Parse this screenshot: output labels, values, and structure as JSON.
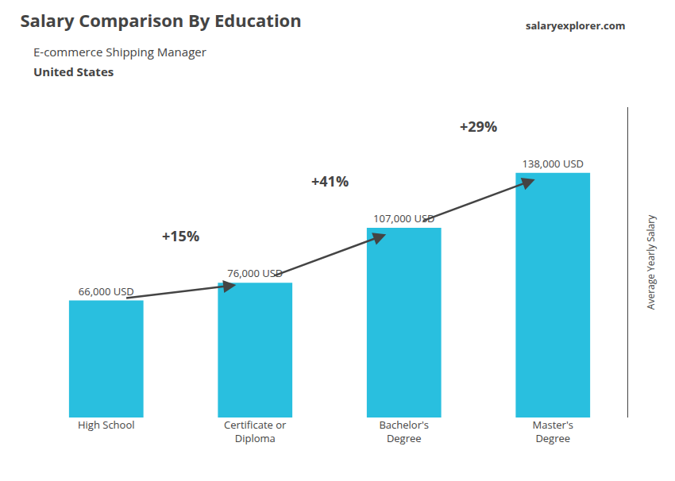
{
  "chart_data": {
    "type": "bar",
    "title": "Salary Comparison By Education",
    "subtitle": "E-commerce Shipping Manager",
    "ylabel": "Average Yearly Salary",
    "categories": [
      "High School",
      "Certificate or\nDiploma",
      "Bachelor's\nDegree",
      "Master's\nDegree"
    ],
    "values": [
      66000,
      76000,
      107000,
      138000
    ],
    "value_labels": [
      "66,000 USD",
      "76,000 USD",
      "107,000 USD",
      "138,000 USD"
    ],
    "data_labels": true,
    "color": "#29BFDF",
    "ylim": [
      0,
      175000
    ],
    "grid": false,
    "tick_labels": "x",
    "annotations": [
      {
        "text": "+15%",
        "from": "High School",
        "to": "Certificate or\nDiploma"
      },
      {
        "text": "+41%",
        "from": "Certificate or\nDiploma",
        "to": "Bachelor's\nDegree"
      },
      {
        "text": "+29%",
        "from": "Bachelor's\nDegree",
        "to": "Master's\nDegree"
      },
      {
        "text": "United States"
      },
      {
        "text": "salaryexplorer.com"
      }
    ]
  }
}
